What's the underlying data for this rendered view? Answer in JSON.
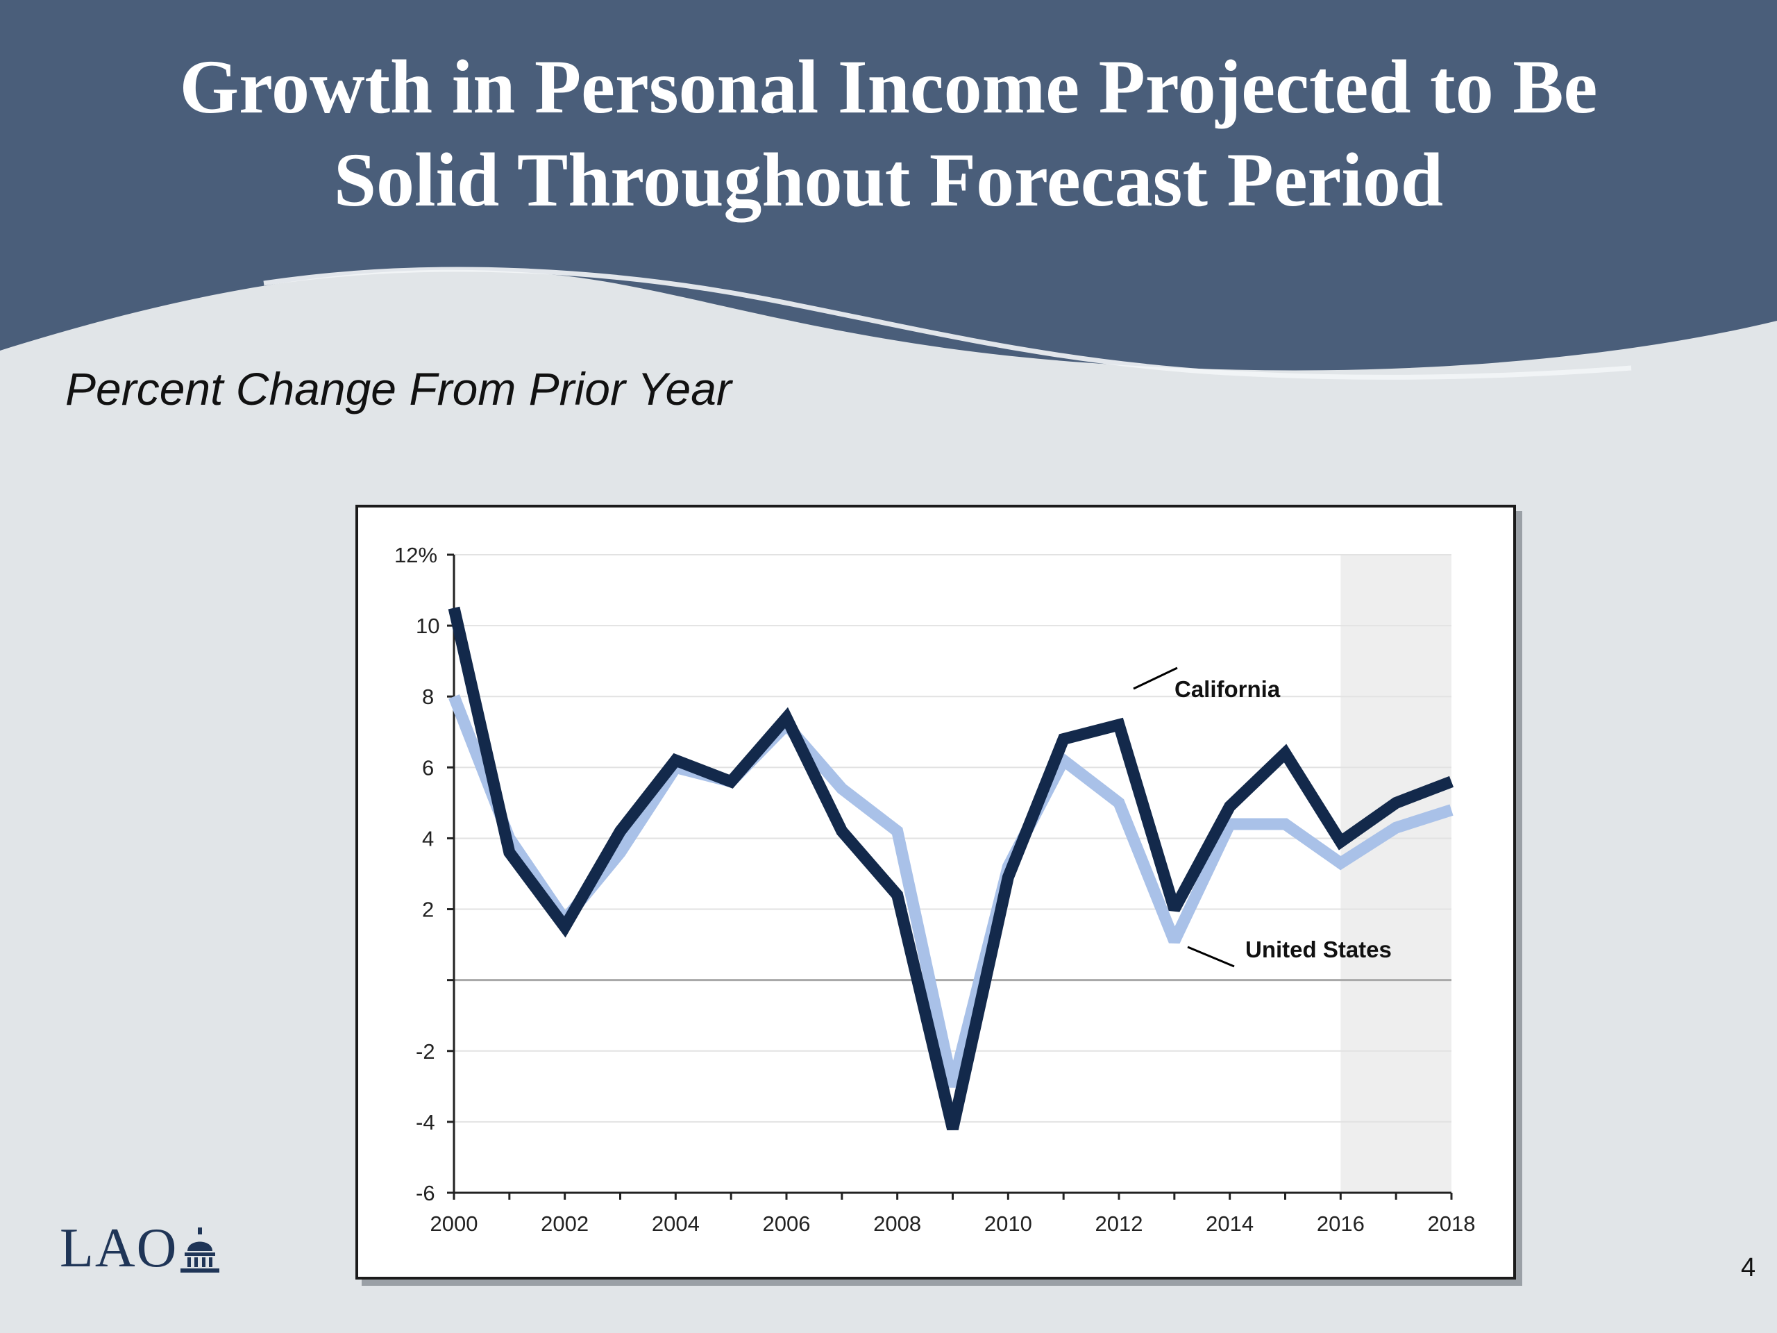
{
  "slide": {
    "title_line1": "Growth in Personal Income Projected to Be",
    "title_line2": "Solid Throughout Forecast Period",
    "subtitle": "Percent Change From Prior Year",
    "logo_text": "LAO",
    "page_number": "4"
  },
  "colors": {
    "banner": "#4a5e7a",
    "background": "#e1e5e8",
    "california": "#13294b",
    "united_states": "#a9c1e8",
    "forecast_shade": "#eeeeee"
  },
  "icons": {
    "logo": "capitol-dome-icon"
  },
  "chart_data": {
    "type": "line",
    "x": [
      2000,
      2001,
      2002,
      2003,
      2004,
      2005,
      2006,
      2007,
      2008,
      2009,
      2010,
      2011,
      2012,
      2013,
      2014,
      2015,
      2016,
      2017,
      2018
    ],
    "series": [
      {
        "name": "California",
        "values": [
          10.5,
          3.6,
          1.5,
          4.2,
          6.2,
          5.6,
          7.4,
          4.2,
          2.4,
          -4.2,
          2.9,
          6.8,
          7.2,
          2.0,
          4.9,
          6.4,
          3.9,
          5.0,
          5.6
        ]
      },
      {
        "name": "United States",
        "values": [
          8.0,
          4.0,
          1.7,
          3.6,
          6.0,
          5.6,
          7.2,
          5.4,
          4.2,
          -3.0,
          3.2,
          6.2,
          5.0,
          1.1,
          4.4,
          4.4,
          3.3,
          4.3,
          4.8
        ]
      }
    ],
    "y_ticks": [
      "12%",
      "10",
      "8",
      "6",
      "4",
      "2",
      "",
      "-2",
      "-4",
      "-6"
    ],
    "y_tick_values": [
      12,
      10,
      8,
      6,
      4,
      2,
      0,
      -2,
      -4,
      -6
    ],
    "x_tick_labels": [
      "2000",
      "2002",
      "2004",
      "2006",
      "2008",
      "2010",
      "2012",
      "2014",
      "2016",
      "2018"
    ],
    "ylim": [
      -6,
      12
    ],
    "xlim": [
      2000,
      2018
    ],
    "forecast_shade_range": [
      2016,
      2018
    ],
    "grid": true,
    "legend": "inline labels"
  }
}
